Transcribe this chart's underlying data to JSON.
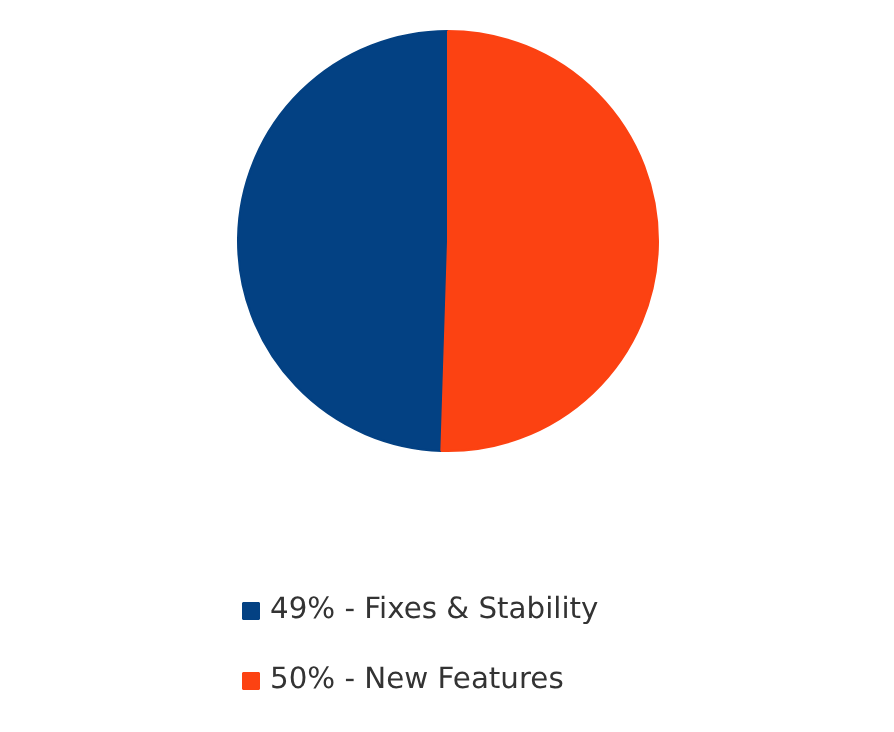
{
  "chart_data": {
    "type": "pie",
    "categories": [
      "49% - Fixes & Stability",
      "50% - New Features"
    ],
    "values": [
      49,
      50
    ],
    "colors": [
      "#034183",
      "#fc4212"
    ],
    "legend": "bottom"
  }
}
